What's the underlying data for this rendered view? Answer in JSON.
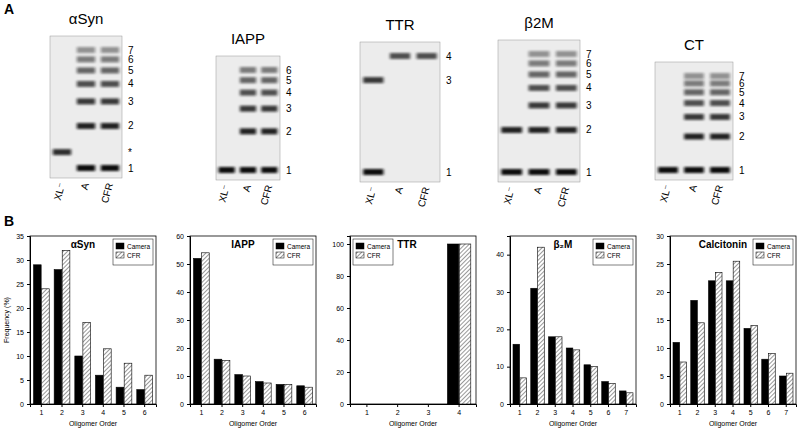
{
  "panel_labels": [
    "A",
    "B"
  ],
  "gels": [
    {
      "title": "αSyn",
      "band_labels": [
        "1",
        "*",
        "2",
        "3",
        "4",
        "5",
        "6",
        "7"
      ],
      "lanes": [
        {
          "label": "XL⁻",
          "bands": [
            "*"
          ]
        },
        {
          "label": "A",
          "bands": [
            "1",
            "2",
            "3",
            "4",
            "5",
            "6",
            "7"
          ]
        },
        {
          "label": "CFR",
          "bands": [
            "1",
            "2",
            "3",
            "4",
            "5",
            "6",
            "7"
          ]
        }
      ]
    },
    {
      "title": "IAPP",
      "band_labels": [
        "1",
        "2",
        "3",
        "4",
        "5",
        "6"
      ],
      "lanes": [
        {
          "label": "XL⁻",
          "bands": [
            "1"
          ]
        },
        {
          "label": "A",
          "bands": [
            "1",
            "2",
            "3",
            "4",
            "5",
            "6"
          ]
        },
        {
          "label": "CFR",
          "bands": [
            "1",
            "2",
            "3",
            "4",
            "5",
            "6"
          ]
        }
      ]
    },
    {
      "title": "TTR",
      "band_labels": [
        "1",
        "3",
        "4"
      ],
      "lanes": [
        {
          "label": "XL⁻",
          "bands": [
            "1",
            "3"
          ]
        },
        {
          "label": "A",
          "bands": [
            "4"
          ]
        },
        {
          "label": "CFR",
          "bands": [
            "4"
          ]
        }
      ]
    },
    {
      "title": "β2M",
      "band_labels": [
        "1",
        "2",
        "3",
        "4",
        "5",
        "6",
        "7"
      ],
      "lanes": [
        {
          "label": "XL⁻",
          "bands": [
            "1",
            "2"
          ]
        },
        {
          "label": "A",
          "bands": [
            "1",
            "2",
            "3",
            "4",
            "5",
            "6",
            "7"
          ]
        },
        {
          "label": "CFR",
          "bands": [
            "1",
            "2",
            "3",
            "4",
            "5",
            "6",
            "7"
          ]
        }
      ]
    },
    {
      "title": "CT",
      "band_labels": [
        "1",
        "2",
        "3",
        "4",
        "5",
        "6",
        "7"
      ],
      "lanes": [
        {
          "label": "XL⁻",
          "bands": [
            "1"
          ]
        },
        {
          "label": "A",
          "bands": [
            "1",
            "2",
            "3",
            "4",
            "5",
            "6",
            "7"
          ]
        },
        {
          "label": "CFR",
          "bands": [
            "1",
            "2",
            "3",
            "4",
            "5",
            "6",
            "7"
          ]
        }
      ]
    }
  ],
  "chart_data": [
    {
      "type": "bar",
      "title": "αSyn",
      "xlabel": "Oligomer Order",
      "ylabel": "Frequency (%)",
      "categories": [
        "1",
        "2",
        "3",
        "4",
        "5",
        "6"
      ],
      "series": [
        {
          "name": "Camera",
          "color": "#000000",
          "values": [
            29,
            28,
            10,
            6,
            3.5,
            3
          ]
        },
        {
          "name": "CFR",
          "color": "#ffffff",
          "values": [
            24,
            32,
            17,
            11.5,
            8.5,
            6
          ]
        }
      ],
      "ylim": [
        0,
        35
      ],
      "yticks": [
        0,
        5,
        10,
        15,
        20,
        25,
        30,
        35
      ],
      "legend": "upper right"
    },
    {
      "type": "bar",
      "title": "IAPP",
      "xlabel": "Oligomer Order",
      "categories": [
        "1",
        "2",
        "3",
        "4",
        "5",
        "6"
      ],
      "series": [
        {
          "name": "Camera",
          "color": "#000000",
          "values": [
            52,
            16,
            10.5,
            8,
            7,
            6.5
          ]
        },
        {
          "name": "CFR",
          "color": "#ffffff",
          "values": [
            54,
            15.5,
            10,
            7.5,
            7,
            6
          ]
        }
      ],
      "ylim": [
        0,
        60
      ],
      "yticks": [
        0,
        10,
        20,
        30,
        40,
        50,
        60
      ],
      "legend": "upper right"
    },
    {
      "type": "bar",
      "title": "TTR",
      "xlabel": "Oligomer Order",
      "categories": [
        "1",
        "2",
        "3",
        "4"
      ],
      "series": [
        {
          "name": "Camera",
          "color": "#000000",
          "values": [
            0,
            0,
            0,
            100
          ]
        },
        {
          "name": "CFR",
          "color": "#ffffff",
          "values": [
            0,
            0,
            0,
            100
          ]
        }
      ],
      "ylim": [
        0,
        105
      ],
      "yticks": [
        0,
        20,
        40,
        60,
        80,
        100
      ],
      "legend": "upper left"
    },
    {
      "type": "bar",
      "title": "β₂M",
      "xlabel": "Oligomer Order",
      "categories": [
        "1",
        "2",
        "3",
        "4",
        "5",
        "6",
        "7"
      ],
      "series": [
        {
          "name": "Camera",
          "color": "#000000",
          "values": [
            16,
            31,
            18,
            15,
            10.5,
            6,
            3.5
          ]
        },
        {
          "name": "CFR",
          "color": "#ffffff",
          "values": [
            7,
            42,
            18,
            14.5,
            10,
            5.5,
            3
          ]
        }
      ],
      "ylim": [
        0,
        45
      ],
      "yticks": [
        0,
        10,
        20,
        30,
        40
      ],
      "legend": "upper right"
    },
    {
      "type": "bar",
      "title": "Calcitonin",
      "xlabel": "Oligomer Order",
      "categories": [
        "1",
        "2",
        "3",
        "4",
        "5",
        "6",
        "7"
      ],
      "series": [
        {
          "name": "Camera",
          "color": "#000000",
          "values": [
            11,
            18.5,
            22,
            22,
            13.5,
            8,
            5
          ]
        },
        {
          "name": "CFR",
          "color": "#ffffff",
          "values": [
            7.5,
            14.5,
            23.5,
            25.5,
            14,
            9,
            5.5
          ]
        }
      ],
      "ylim": [
        0,
        30
      ],
      "yticks": [
        0,
        5,
        10,
        15,
        20,
        25,
        30
      ],
      "legend": "upper right"
    }
  ]
}
